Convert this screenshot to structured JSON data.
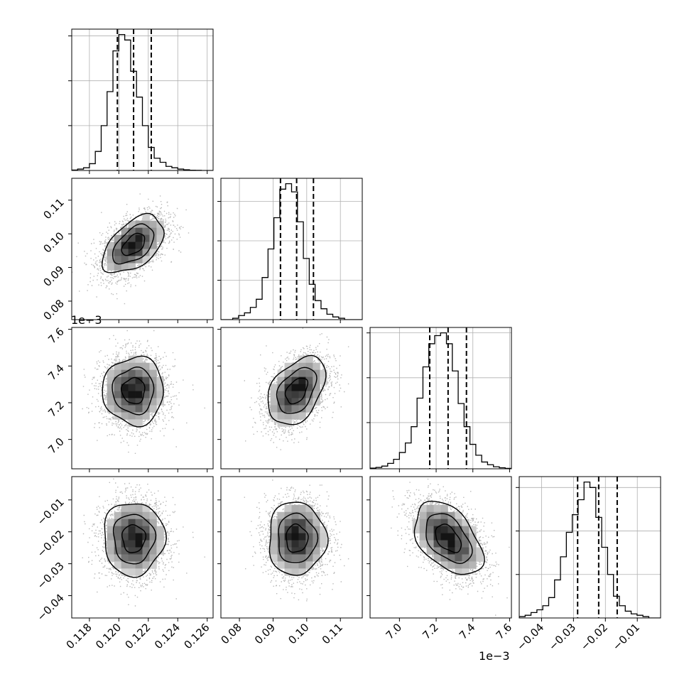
{
  "figure": {
    "type": "corner-plot",
    "offset_text_v3": "1e−3"
  },
  "chart_data": [
    {
      "type": "histogram",
      "param_index": 0,
      "xlim": [
        0.1168,
        0.1264
      ],
      "ylim": [
        0,
        1.0
      ],
      "bin_edges_start": 0.1168,
      "bin_width": 0.0004,
      "counts": [
        0.003,
        0.01,
        0.02,
        0.05,
        0.14,
        0.33,
        0.58,
        0.88,
        1.0,
        0.96,
        0.73,
        0.54,
        0.33,
        0.17,
        0.09,
        0.06,
        0.03,
        0.02,
        0.01,
        0.005,
        0.002,
        0.001,
        0.0,
        0.0
      ],
      "quantile_lines": [
        0.1199,
        0.121,
        0.1222
      ],
      "yticks": [
        0.33,
        0.66,
        0.99
      ]
    },
    {
      "type": "histogram",
      "param_index": 1,
      "xlim": [
        0.0745,
        0.1165
      ],
      "ylim": [
        0,
        1.0
      ],
      "bin_edges_start": 0.0745,
      "bin_width": 0.00175,
      "counts": [
        0.0,
        0.0,
        0.01,
        0.03,
        0.05,
        0.09,
        0.15,
        0.31,
        0.52,
        0.75,
        0.96,
        1.0,
        0.94,
        0.72,
        0.45,
        0.26,
        0.14,
        0.08,
        0.04,
        0.02,
        0.01,
        0.0,
        0.0,
        0.0
      ],
      "quantile_lines": [
        0.0922,
        0.097,
        0.102
      ],
      "yticks": [
        0.29,
        0.58,
        0.87
      ]
    },
    {
      "type": "histogram",
      "param_index": 2,
      "xlim": [
        6.84,
        7.61
      ],
      "x_scale_note": "values in units of 1e-3",
      "ylim": [
        0,
        1.0
      ],
      "bin_edges_start": 6.84,
      "bin_width": 0.032,
      "counts": [
        0.005,
        0.01,
        0.02,
        0.04,
        0.07,
        0.12,
        0.19,
        0.31,
        0.52,
        0.75,
        0.92,
        0.98,
        1.0,
        0.92,
        0.72,
        0.48,
        0.31,
        0.18,
        0.1,
        0.05,
        0.03,
        0.015,
        0.008,
        0.003
      ],
      "quantile_lines": [
        7.165,
        7.265,
        7.365
      ],
      "yticks": [
        0.34,
        0.67,
        1.0
      ]
    },
    {
      "type": "histogram",
      "param_index": 3,
      "xlim": [
        -0.047,
        -0.0027
      ],
      "ylim": [
        0,
        1.0
      ],
      "bin_edges_start": -0.047,
      "bin_width": 0.001846,
      "counts": [
        0.01,
        0.02,
        0.04,
        0.06,
        0.09,
        0.15,
        0.28,
        0.45,
        0.63,
        0.76,
        0.87,
        1.0,
        0.96,
        0.74,
        0.52,
        0.32,
        0.16,
        0.09,
        0.05,
        0.03,
        0.02,
        0.01,
        0.0,
        0.0
      ],
      "quantile_lines": [
        -0.0287,
        -0.0221,
        -0.0163
      ],
      "yticks": [
        0.32,
        0.64,
        0.96
      ]
    },
    {
      "type": "2d-density",
      "x_param": 0,
      "y_param": 1,
      "xlim": [
        0.1168,
        0.1264
      ],
      "ylim": [
        0.0745,
        0.1165
      ],
      "center": [
        0.121,
        0.0968
      ],
      "sigma": [
        0.00112,
        0.00462
      ],
      "rho": 0.5
    },
    {
      "type": "2d-density",
      "x_param": 0,
      "y_param": 2,
      "xlim": [
        0.1168,
        0.1264
      ],
      "ylim": [
        6.84,
        7.61
      ],
      "center": [
        0.121,
        7.265
      ],
      "sigma": [
        0.00112,
        0.1
      ],
      "rho": 0.0
    },
    {
      "type": "2d-density",
      "x_param": 1,
      "y_param": 2,
      "xlim": [
        0.0745,
        0.1165
      ],
      "ylim": [
        6.84,
        7.61
      ],
      "center": [
        0.097,
        7.265
      ],
      "sigma": [
        0.00462,
        0.1
      ],
      "rho": 0.4
    },
    {
      "type": "2d-density",
      "x_param": 0,
      "y_param": 3,
      "xlim": [
        0.1168,
        0.1264
      ],
      "ylim": [
        -0.047,
        -0.0027
      ],
      "center": [
        0.121,
        -0.0221
      ],
      "sigma": [
        0.00112,
        0.0062
      ],
      "rho": 0.0
    },
    {
      "type": "2d-density",
      "x_param": 1,
      "y_param": 3,
      "xlim": [
        0.0745,
        0.1165
      ],
      "ylim": [
        -0.047,
        -0.0027
      ],
      "center": [
        0.097,
        -0.0221
      ],
      "sigma": [
        0.00462,
        0.0062
      ],
      "rho": 0.0
    },
    {
      "type": "2d-density",
      "x_param": 2,
      "y_param": 3,
      "xlim": [
        6.84,
        7.61
      ],
      "ylim": [
        -0.047,
        -0.0027
      ],
      "center": [
        7.265,
        -0.0221
      ],
      "sigma": [
        0.1,
        0.0062
      ],
      "rho": -0.45
    }
  ],
  "axes_ticks": {
    "x0": {
      "values": [
        0.118,
        0.12,
        0.122,
        0.124,
        0.126
      ],
      "labels": [
        "0.118",
        "0.120",
        "0.122",
        "0.124",
        "0.126"
      ]
    },
    "x1": {
      "values": [
        0.08,
        0.09,
        0.1,
        0.11
      ],
      "labels": [
        "0.08",
        "0.09",
        "0.10",
        "0.11"
      ]
    },
    "x2": {
      "values": [
        7.0,
        7.2,
        7.4,
        7.6
      ],
      "labels": [
        "7.0",
        "7.2",
        "7.4",
        "7.6"
      ]
    },
    "x3": {
      "values": [
        -0.04,
        -0.03,
        -0.02,
        -0.01
      ],
      "labels": [
        "−0.04",
        "−0.03",
        "−0.02",
        "−0.01"
      ]
    },
    "y1": {
      "values": [
        0.08,
        0.09,
        0.1,
        0.11
      ],
      "labels": [
        "0.08",
        "0.09",
        "0.10",
        "0.11"
      ]
    },
    "y2": {
      "values": [
        7.0,
        7.2,
        7.4,
        7.6
      ],
      "labels": [
        "7.0",
        "7.2",
        "7.4",
        "7.6"
      ]
    },
    "y3": {
      "values": [
        -0.04,
        -0.03,
        -0.02,
        -0.01
      ],
      "labels": [
        "−0.04",
        "−0.03",
        "−0.02",
        "−0.01"
      ]
    }
  },
  "colors": {
    "ink": "#000000",
    "grid": "#b0b0b0",
    "scatter": "#7f7f7f"
  }
}
